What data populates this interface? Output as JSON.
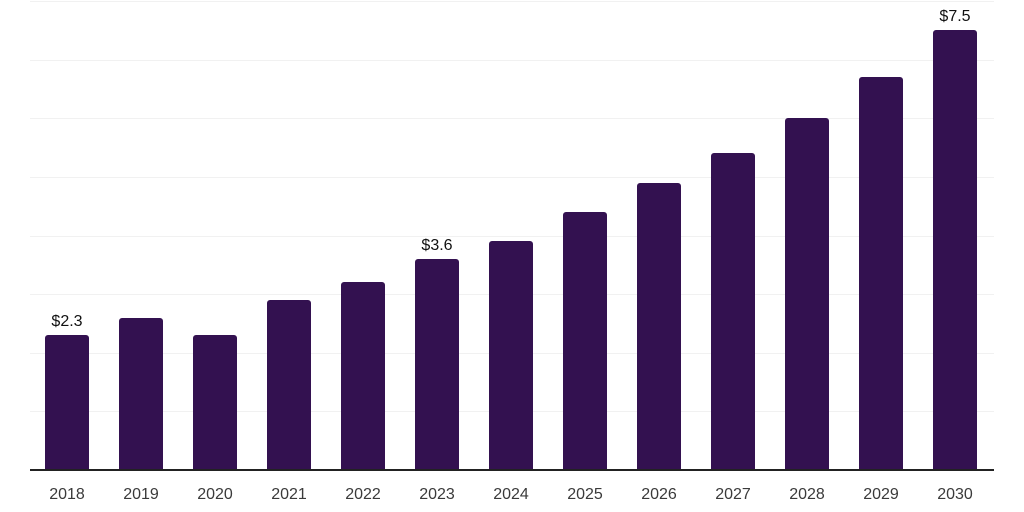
{
  "chart_data": {
    "type": "bar",
    "title": "",
    "xlabel": "",
    "ylabel": "",
    "categories": [
      "2018",
      "2019",
      "2020",
      "2021",
      "2022",
      "2023",
      "2024",
      "2025",
      "2026",
      "2027",
      "2028",
      "2029",
      "2030"
    ],
    "values": [
      2.3,
      2.6,
      2.3,
      2.9,
      3.2,
      3.6,
      3.9,
      4.4,
      4.9,
      5.4,
      6.0,
      6.7,
      7.5
    ],
    "data_labels": {
      "2018": "$2.3",
      "2023": "$3.6",
      "2030": "$7.5"
    },
    "ylim": [
      0,
      8
    ],
    "gridline_step": 1,
    "grid": true,
    "legend": false,
    "y_axis_tick_labels_visible": false,
    "colors": {
      "bar": "#331150",
      "gridline": "#f1f1f1",
      "axis_line": "#222222",
      "tick_label": "#3a3a3a",
      "data_label": "#111111",
      "background": "#ffffff"
    }
  }
}
